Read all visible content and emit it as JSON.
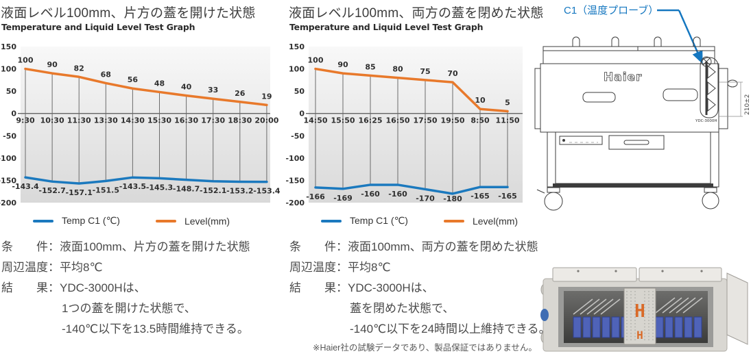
{
  "colors": {
    "level_orange": "#E8792B",
    "temp_blue": "#1B79BE",
    "callout_blue": "#1577C0",
    "photo_logo_orange": "#D96A28"
  },
  "chart_data": [
    {
      "type": "line",
      "title": "液面レベル100mm、片方の蓋を開けた状態",
      "subtitle": "Temperature and Liquid Level Test Graph",
      "categories": [
        "9:30",
        "10:30",
        "11:30",
        "13:30",
        "14:30",
        "15:30",
        "16:30",
        "17:30",
        "18:30",
        "20:00"
      ],
      "series": [
        {
          "name": "Temp C1 (℃)",
          "color": "#1B79BE",
          "values": [
            -143.4,
            -152.7,
            -157.1,
            -151.5,
            -143.5,
            -145.3,
            -148.7,
            -152.1,
            -153.2,
            -153.4
          ]
        },
        {
          "name": "Level(mm)",
          "color": "#E8792B",
          "values": [
            100,
            90,
            82,
            68,
            56,
            48,
            40,
            33,
            26,
            19
          ]
        }
      ],
      "ylim": [
        -200,
        150
      ],
      "ytick_step": 50,
      "grid": "vertical-drop-lines",
      "legend_position": "bottom"
    },
    {
      "type": "line",
      "title": "液面レベル100mm、両方の蓋を閉めた状態",
      "subtitle": "Temperature and Liquid Level Test Graph",
      "categories": [
        "14:50",
        "15:50",
        "16:25",
        "16:50",
        "17:50",
        "19:50",
        "8:50",
        "11:50"
      ],
      "series": [
        {
          "name": "Temp C1 (℃)",
          "color": "#1B79BE",
          "values": [
            -166,
            -169,
            -160,
            -160,
            -170,
            -180,
            -165,
            -165
          ]
        },
        {
          "name": "Level(mm)",
          "color": "#E8792B",
          "values": [
            100,
            90,
            85,
            80,
            75,
            70,
            10,
            5
          ]
        }
      ],
      "ylim": [
        -200,
        150
      ],
      "ytick_step": 50,
      "grid": "vertical-drop-lines",
      "legend_position": "bottom"
    }
  ],
  "condition_blocks": [
    {
      "rows": [
        {
          "label": "条　　件：",
          "value": "液面100mm、片方の蓋を開けた状態"
        },
        {
          "label": "周辺温度：",
          "value": "平均8℃"
        },
        {
          "label": "結　　果：",
          "value": "YDC-3000Hは、"
        }
      ],
      "continuations": [
        "1つの蓋を開けた状態で、",
        "-140℃以下を13.5時間維持できる。"
      ]
    },
    {
      "rows": [
        {
          "label": "条　　件：",
          "value": "液面100mm、両方の蓋を閉めた状態"
        },
        {
          "label": "周辺温度：",
          "value": "平均8℃"
        },
        {
          "label": "結　　果：",
          "value": "YDC-3000Hは、"
        }
      ],
      "continuations": [
        "蓋を閉めた状態で、",
        "-140℃以下を24時間以上維持できる。"
      ],
      "note": "※Haier社の試験データであり、製品保証ではありません。"
    }
  ],
  "device": {
    "probe_label": "C1（温度プローブ）",
    "brand": "Haier",
    "model_label": "YDC-3000H",
    "dimension_label": "210±2",
    "photo_letter": "H"
  }
}
